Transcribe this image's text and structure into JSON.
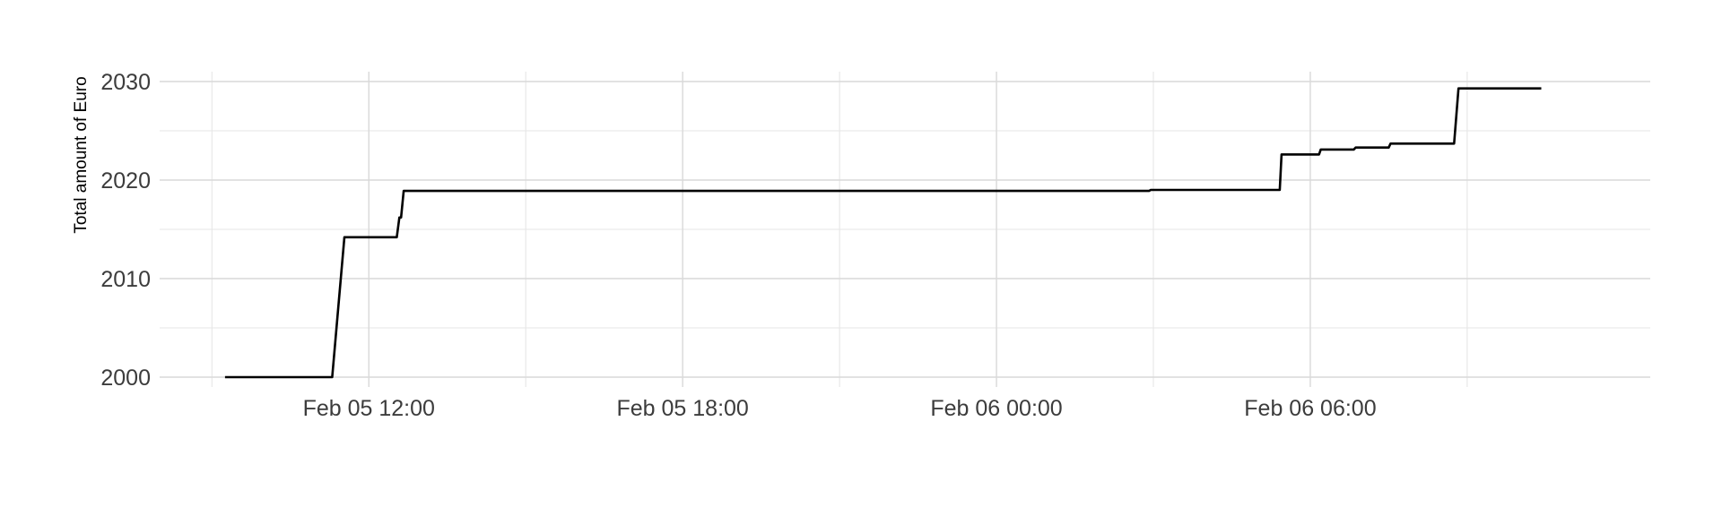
{
  "chart_data": {
    "type": "line",
    "title": "",
    "xlabel": "",
    "ylabel": "Total amount of Euro",
    "x_tick_labels": [
      "Feb 05 12:00",
      "Feb 05 18:00",
      "Feb 06 00:00",
      "Feb 06 06:00"
    ],
    "x_ticks": [
      "2024-02-05T12:00",
      "2024-02-05T18:00",
      "2024-02-06T00:00",
      "2024-02-06T06:00"
    ],
    "y_ticks": [
      2000,
      2010,
      2020,
      2030
    ],
    "xlim": [
      "2024-02-05T08:00",
      "2024-02-06T12:30"
    ],
    "ylim": [
      1999,
      2031
    ],
    "grid": true,
    "legend": "none",
    "line_color": "#000000",
    "series": [
      {
        "x": [
          "2024-02-05T09:15",
          "2024-02-05T11:18",
          "2024-02-05T11:32",
          "2024-02-05T12:32",
          "2024-02-05T12:35",
          "2024-02-05T12:37",
          "2024-02-05T12:40",
          "2024-02-06T02:55",
          "2024-02-06T02:57",
          "2024-02-06T05:25",
          "2024-02-06T05:27",
          "2024-02-06T06:10",
          "2024-02-06T06:12",
          "2024-02-06T06:50",
          "2024-02-06T06:52",
          "2024-02-06T07:30",
          "2024-02-06T07:32",
          "2024-02-06T08:45",
          "2024-02-06T08:50",
          "2024-02-06T10:25"
        ],
        "y": [
          2000.0,
          2000.0,
          2014.2,
          2014.2,
          2016.2,
          2016.2,
          2018.9,
          2018.9,
          2019.0,
          2019.0,
          2022.6,
          2022.6,
          2023.1,
          2023.1,
          2023.3,
          2023.3,
          2023.7,
          2023.7,
          2029.3,
          2029.3
        ]
      }
    ]
  }
}
